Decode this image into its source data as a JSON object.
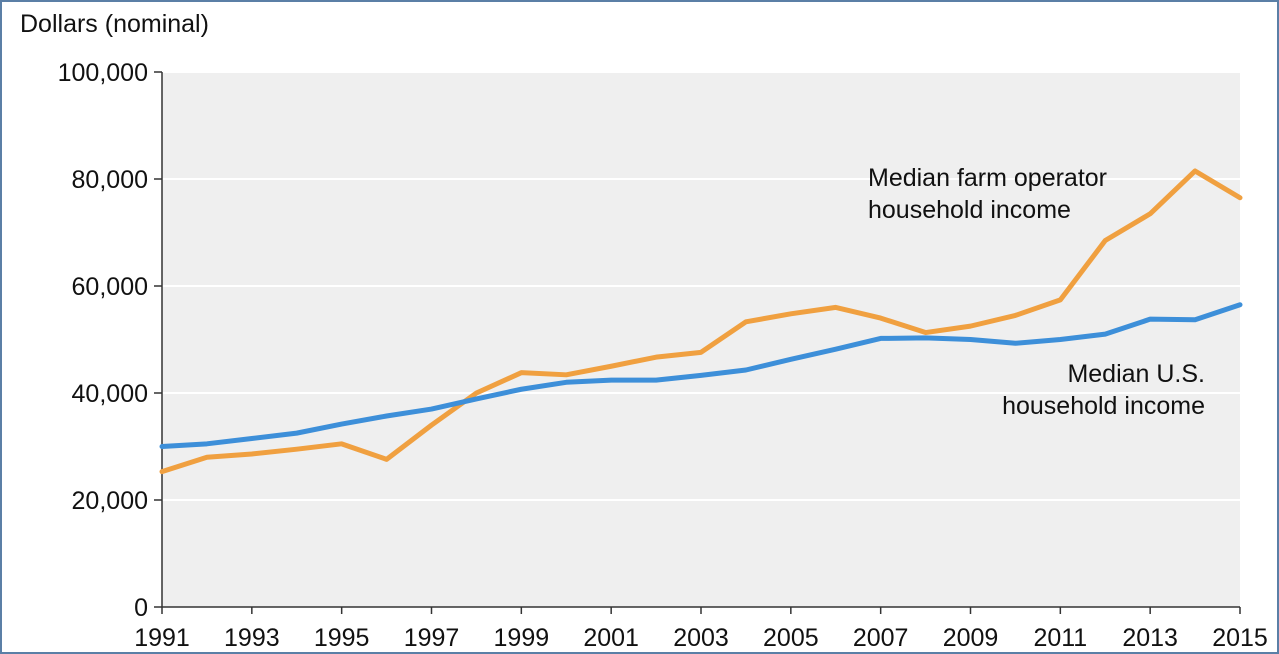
{
  "chart_data": {
    "type": "line",
    "title": "",
    "ylabel": "Dollars (nominal)",
    "xlabel": "",
    "ylim": [
      0,
      100000
    ],
    "xlim": [
      1991,
      2015
    ],
    "yticks": [
      0,
      20000,
      40000,
      60000,
      80000,
      100000
    ],
    "ytick_labels": [
      "0",
      "20,000",
      "40,000",
      "60,000",
      "80,000",
      "100,000"
    ],
    "xticks": [
      1991,
      1993,
      1995,
      1997,
      1999,
      2001,
      2003,
      2005,
      2007,
      2009,
      2011,
      2013,
      2015
    ],
    "xtick_labels": [
      "1991",
      "1993",
      "1995",
      "1997",
      "1999",
      "2001",
      "2003",
      "2005",
      "2007",
      "2009",
      "2011",
      "2013",
      "2015"
    ],
    "grid": true,
    "x": [
      1991,
      1992,
      1993,
      1994,
      1995,
      1996,
      1997,
      1998,
      1999,
      2000,
      2001,
      2002,
      2003,
      2004,
      2005,
      2006,
      2007,
      2008,
      2009,
      2010,
      2011,
      2012,
      2013,
      2014,
      2015
    ],
    "series": [
      {
        "name": "Median farm operator household income",
        "color": "#f0a040",
        "values": [
          25300,
          28000,
          28600,
          29500,
          30500,
          27600,
          34000,
          40000,
          43800,
          43400,
          45000,
          46700,
          47600,
          53300,
          54800,
          56000,
          54000,
          51300,
          52500,
          54500,
          57400,
          68500,
          73500,
          81500,
          76500
        ],
        "annotation": [
          "Median farm operator",
          "household income"
        ]
      },
      {
        "name": "Median U.S. household income",
        "color": "#3d8fd9",
        "values": [
          30000,
          30500,
          31500,
          32500,
          34200,
          35700,
          37000,
          38900,
          40700,
          42000,
          42400,
          42400,
          43300,
          44300,
          46300,
          48200,
          50200,
          50300,
          50000,
          49300,
          50000,
          51000,
          53800,
          53700,
          56500
        ],
        "annotation": [
          "Median U.S.",
          "household income"
        ]
      }
    ]
  }
}
